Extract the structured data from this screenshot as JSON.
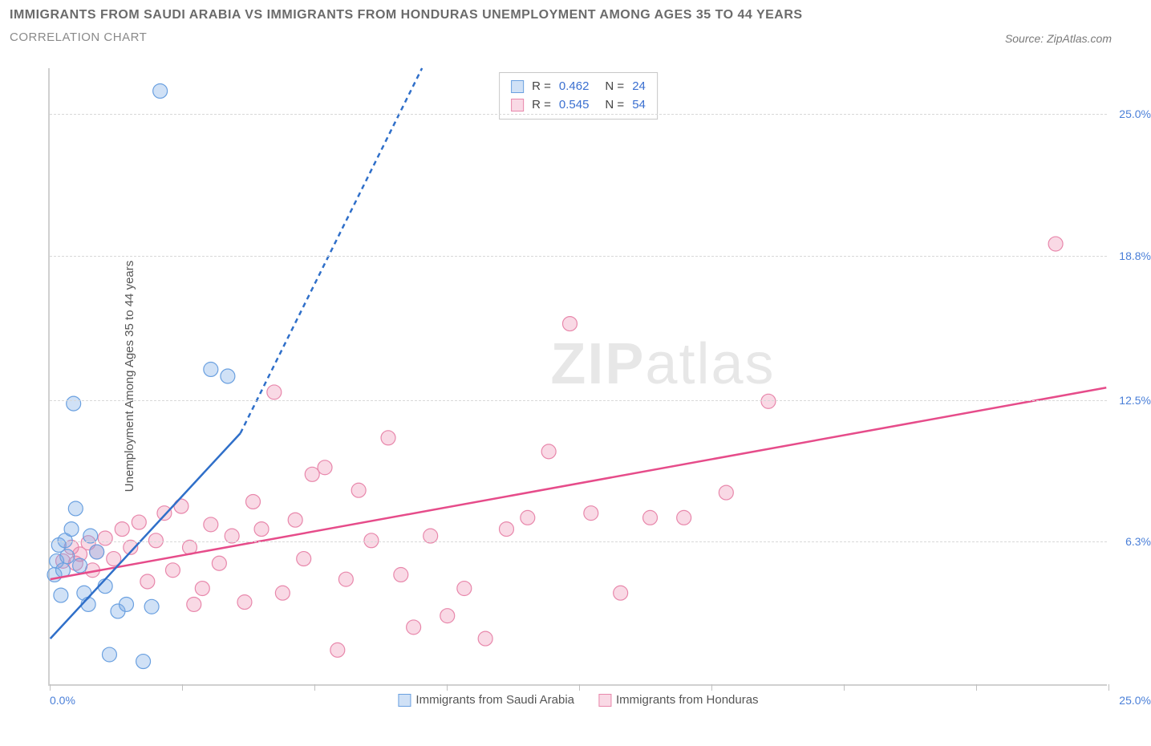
{
  "title_line1": "IMMIGRANTS FROM SAUDI ARABIA VS IMMIGRANTS FROM HONDURAS UNEMPLOYMENT AMONG AGES 35 TO 44 YEARS",
  "title_line2": "CORRELATION CHART",
  "source_text": "Source: ZipAtlas.com",
  "ylabel": "Unemployment Among Ages 35 to 44 years",
  "watermark_bold": "ZIP",
  "watermark_light": "atlas",
  "chart": {
    "type": "scatter",
    "xlim": [
      0,
      25
    ],
    "ylim": [
      0,
      27
    ],
    "x_tick_positions": [
      0,
      3.125,
      6.25,
      9.375,
      12.5,
      15.625,
      18.75,
      21.875,
      25
    ],
    "x_min_label": "0.0%",
    "x_max_label": "25.0%",
    "y_gridlines": [
      6.3,
      12.5,
      18.8,
      25.0
    ],
    "y_tick_labels": [
      "6.3%",
      "12.5%",
      "18.8%",
      "25.0%"
    ],
    "background_color": "#ffffff",
    "grid_color": "#d8d8d8",
    "axis_color": "#d0d0d0",
    "marker_radius": 9,
    "marker_stroke_width": 1.2,
    "trend_line_width": 2.5,
    "trend_dash_pattern": "6,5"
  },
  "series": {
    "saudi": {
      "label": "Immigrants from Saudi Arabia",
      "fill": "rgba(120,170,230,0.35)",
      "stroke": "#6aa0e0",
      "line_color": "#2f6fc9",
      "r_value": "0.462",
      "n_value": "24",
      "trend": {
        "x1": 0,
        "y1": 2.0,
        "x2_solid": 4.5,
        "y2_solid": 11.0,
        "x2_dash": 8.8,
        "y2_dash": 27.0
      },
      "points": [
        [
          0.1,
          4.8
        ],
        [
          0.15,
          5.4
        ],
        [
          0.2,
          6.1
        ],
        [
          0.25,
          3.9
        ],
        [
          0.3,
          5.0
        ],
        [
          0.35,
          6.3
        ],
        [
          0.4,
          5.6
        ],
        [
          0.5,
          6.8
        ],
        [
          0.55,
          12.3
        ],
        [
          0.6,
          7.7
        ],
        [
          0.7,
          5.2
        ],
        [
          0.8,
          4.0
        ],
        [
          0.9,
          3.5
        ],
        [
          1.1,
          5.8
        ],
        [
          1.3,
          4.3
        ],
        [
          1.4,
          1.3
        ],
        [
          1.6,
          3.2
        ],
        [
          1.8,
          3.5
        ],
        [
          2.2,
          1.0
        ],
        [
          2.4,
          3.4
        ],
        [
          2.6,
          26.0
        ],
        [
          3.8,
          13.8
        ],
        [
          4.2,
          13.5
        ],
        [
          0.95,
          6.5
        ]
      ]
    },
    "honduras": {
      "label": "Immigrants from Honduras",
      "fill": "rgba(235,130,170,0.30)",
      "stroke": "#e887ab",
      "line_color": "#e64c8a",
      "r_value": "0.545",
      "n_value": "54",
      "trend": {
        "x1": 0,
        "y1": 4.6,
        "x2": 25,
        "y2": 13.0
      },
      "points": [
        [
          0.3,
          5.4
        ],
        [
          0.5,
          6.0
        ],
        [
          0.7,
          5.7
        ],
        [
          0.9,
          6.2
        ],
        [
          1.1,
          5.8
        ],
        [
          1.3,
          6.4
        ],
        [
          1.5,
          5.5
        ],
        [
          1.7,
          6.8
        ],
        [
          1.9,
          6.0
        ],
        [
          2.1,
          7.1
        ],
        [
          2.3,
          4.5
        ],
        [
          2.5,
          6.3
        ],
        [
          2.7,
          7.5
        ],
        [
          2.9,
          5.0
        ],
        [
          3.1,
          7.8
        ],
        [
          3.3,
          6.0
        ],
        [
          3.6,
          4.2
        ],
        [
          3.8,
          7.0
        ],
        [
          4.0,
          5.3
        ],
        [
          4.3,
          6.5
        ],
        [
          4.6,
          3.6
        ],
        [
          5.0,
          6.8
        ],
        [
          5.3,
          12.8
        ],
        [
          5.5,
          4.0
        ],
        [
          5.8,
          7.2
        ],
        [
          6.2,
          9.2
        ],
        [
          6.5,
          9.5
        ],
        [
          6.8,
          1.5
        ],
        [
          7.0,
          4.6
        ],
        [
          7.3,
          8.5
        ],
        [
          7.6,
          6.3
        ],
        [
          8.0,
          10.8
        ],
        [
          8.3,
          4.8
        ],
        [
          8.6,
          2.5
        ],
        [
          9.0,
          6.5
        ],
        [
          9.4,
          3.0
        ],
        [
          9.8,
          4.2
        ],
        [
          10.3,
          2.0
        ],
        [
          10.8,
          6.8
        ],
        [
          11.3,
          7.3
        ],
        [
          11.8,
          10.2
        ],
        [
          12.3,
          15.8
        ],
        [
          12.8,
          7.5
        ],
        [
          13.5,
          4.0
        ],
        [
          14.2,
          7.3
        ],
        [
          15.0,
          7.3
        ],
        [
          16.0,
          8.4
        ],
        [
          17.0,
          12.4
        ],
        [
          23.8,
          19.3
        ],
        [
          4.8,
          8.0
        ],
        [
          6.0,
          5.5
        ],
        [
          3.4,
          3.5
        ],
        [
          1.0,
          5.0
        ],
        [
          0.6,
          5.3
        ]
      ]
    }
  },
  "top_legend": {
    "rows": [
      {
        "r_label": "R =",
        "r_val": "0.462",
        "n_label": "N =",
        "n_val": "24",
        "swatch_fill": "rgba(120,170,230,0.35)",
        "swatch_stroke": "#6aa0e0"
      },
      {
        "r_label": "R =",
        "r_val": "0.545",
        "n_label": "N =",
        "n_val": "54",
        "swatch_fill": "rgba(235,130,170,0.30)",
        "swatch_stroke": "#e887ab"
      }
    ]
  }
}
